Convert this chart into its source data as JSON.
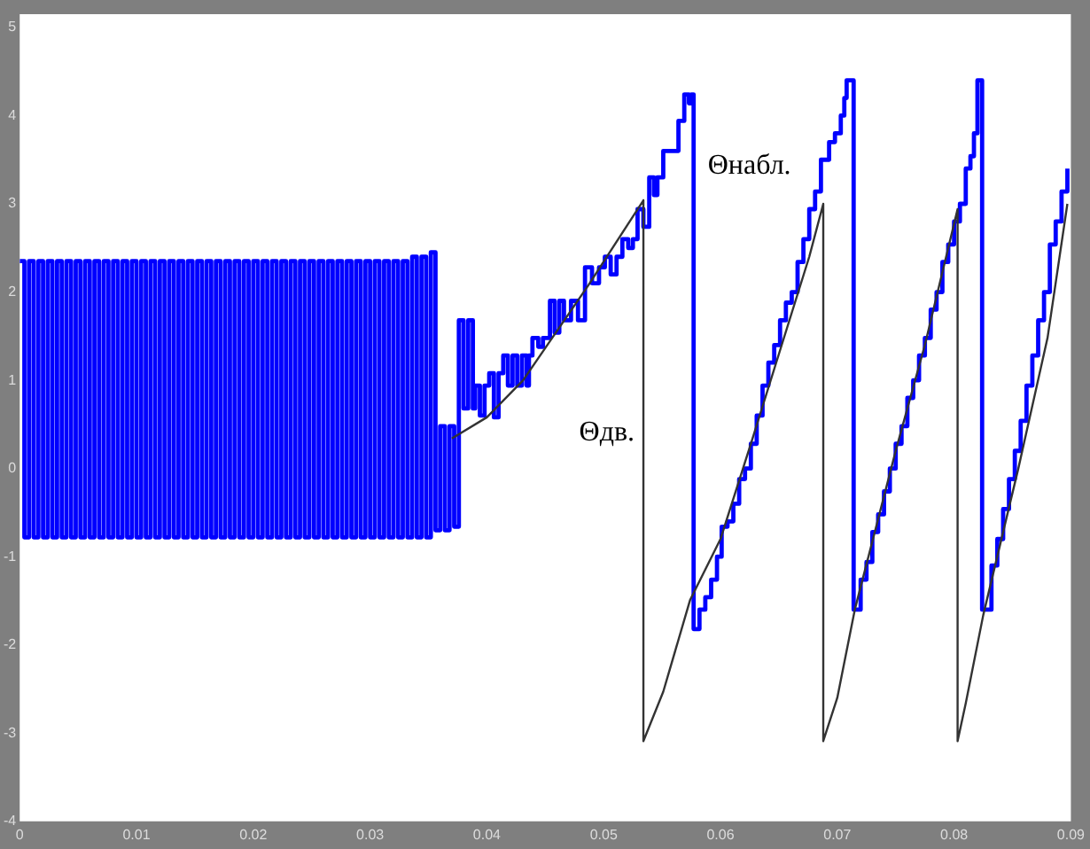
{
  "chart_data": {
    "type": "line",
    "xlim": [
      0,
      0.09
    ],
    "xticks": [
      0,
      0.01,
      0.02,
      0.03,
      0.04,
      0.05,
      0.06,
      0.07,
      0.08,
      0.09
    ],
    "ylim": [
      -4,
      5.15
    ],
    "yticks": [
      -4,
      -3,
      -2,
      -1,
      0,
      1,
      2,
      3,
      4,
      5
    ],
    "series": [
      {
        "name": "Θнабл.",
        "color": "#0000ff",
        "type": "step",
        "x": [
          0,
          0.0004,
          0.0008,
          0.0012,
          0.0016,
          0.002,
          0.0024,
          0.0028,
          0.0032,
          0.0036,
          0.004,
          0.0044,
          0.0048,
          0.0052,
          0.0056,
          0.006,
          0.0064,
          0.0068,
          0.0072,
          0.0076,
          0.008,
          0.0084,
          0.0088,
          0.0092,
          0.0096,
          0.01,
          0.0104,
          0.0108,
          0.0112,
          0.0116,
          0.012,
          0.0124,
          0.0128,
          0.0132,
          0.0136,
          0.014,
          0.0144,
          0.0148,
          0.0152,
          0.0156,
          0.016,
          0.0164,
          0.0168,
          0.0172,
          0.0176,
          0.018,
          0.0184,
          0.0188,
          0.0192,
          0.0196,
          0.02,
          0.0204,
          0.0208,
          0.0212,
          0.0216,
          0.022,
          0.0224,
          0.0228,
          0.0232,
          0.0236,
          0.024,
          0.0244,
          0.0248,
          0.0252,
          0.0256,
          0.026,
          0.0264,
          0.0268,
          0.0272,
          0.0276,
          0.028,
          0.0284,
          0.0288,
          0.0292,
          0.0296,
          0.03,
          0.0304,
          0.0308,
          0.0312,
          0.0316,
          0.032,
          0.0324,
          0.0328,
          0.0332,
          0.0336,
          0.034,
          0.0344,
          0.0348,
          0.0352,
          0.0356,
          0.036,
          0.0364,
          0.0368,
          0.0372,
          0.0376,
          0.038,
          0.0384,
          0.0388,
          0.039,
          0.0394,
          0.0398,
          0.0402,
          0.0406,
          0.041,
          0.0414,
          0.0418,
          0.0422,
          0.0426,
          0.043,
          0.0434,
          0.0436,
          0.0439,
          0.0444,
          0.0448,
          0.0454,
          0.0458,
          0.0462,
          0.0466,
          0.0472,
          0.0478,
          0.0484,
          0.049,
          0.0496,
          0.0501,
          0.0506,
          0.0511,
          0.0516,
          0.0521,
          0.0525,
          0.0529,
          0.0534,
          0.0539,
          0.0543,
          0.0546,
          0.0551,
          0.0564,
          0.0569,
          0.0573,
          0.0575,
          0.0577,
          0.0582,
          0.0587,
          0.0592,
          0.0597,
          0.0601,
          0.0606,
          0.0611,
          0.0616,
          0.0621,
          0.0626,
          0.0631,
          0.0636,
          0.0641,
          0.0646,
          0.0651,
          0.0656,
          0.0661,
          0.0666,
          0.0671,
          0.0676,
          0.0681,
          0.0686,
          0.0693,
          0.0698,
          0.0703,
          0.0706,
          0.0708,
          0.0714,
          0.072,
          0.0725,
          0.073,
          0.0735,
          0.074,
          0.0745,
          0.075,
          0.0755,
          0.076,
          0.0765,
          0.077,
          0.0775,
          0.078,
          0.0785,
          0.079,
          0.0795,
          0.08,
          0.0805,
          0.081,
          0.0814,
          0.0817,
          0.082,
          0.0824,
          0.0832,
          0.0837,
          0.0842,
          0.0847,
          0.0852,
          0.0857,
          0.0862,
          0.0867,
          0.0872,
          0.0877,
          0.0882,
          0.0887,
          0.0892,
          0.0897
        ],
        "values": [
          2.35,
          -0.78,
          2.35,
          -0.78,
          2.35,
          -0.78,
          2.35,
          -0.78,
          2.35,
          -0.78,
          2.35,
          -0.78,
          2.35,
          -0.78,
          2.35,
          -0.78,
          2.35,
          -0.78,
          2.35,
          -0.78,
          2.35,
          -0.78,
          2.35,
          -0.78,
          2.35,
          -0.78,
          2.35,
          -0.78,
          2.35,
          -0.78,
          2.35,
          -0.78,
          2.35,
          -0.78,
          2.35,
          -0.78,
          2.35,
          -0.78,
          2.35,
          -0.78,
          2.35,
          -0.78,
          2.35,
          -0.78,
          2.35,
          -0.78,
          2.35,
          -0.78,
          2.35,
          -0.78,
          2.35,
          -0.78,
          2.35,
          -0.78,
          2.35,
          -0.78,
          2.35,
          -0.78,
          2.35,
          -0.78,
          2.35,
          -0.78,
          2.35,
          -0.78,
          2.35,
          -0.78,
          2.35,
          -0.78,
          2.35,
          -0.78,
          2.35,
          -0.78,
          2.35,
          -0.78,
          2.35,
          -0.78,
          2.35,
          -0.78,
          2.35,
          -0.78,
          2.35,
          -0.78,
          2.35,
          -0.78,
          2.4,
          -0.78,
          2.4,
          -0.78,
          2.45,
          -0.7,
          0.48,
          -0.7,
          0.48,
          -0.66,
          1.68,
          0.68,
          1.68,
          0.68,
          0.94,
          0.6,
          0.94,
          1.08,
          0.58,
          1.08,
          1.28,
          0.94,
          1.28,
          0.94,
          1.28,
          0.94,
          1.28,
          1.48,
          1.38,
          1.48,
          1.9,
          1.54,
          1.9,
          1.68,
          1.9,
          1.68,
          2.28,
          2.1,
          2.28,
          2.4,
          2.2,
          2.4,
          2.6,
          2.5,
          2.6,
          2.94,
          2.74,
          3.3,
          3.1,
          3.3,
          3.6,
          3.94,
          4.24,
          4.14,
          4.24,
          -1.82,
          -1.6,
          -1.46,
          -1.26,
          -1.0,
          -0.66,
          -0.6,
          -0.4,
          -0.12,
          0,
          0.28,
          0.6,
          0.94,
          1.2,
          1.4,
          1.68,
          1.88,
          2.0,
          2.34,
          2.6,
          2.94,
          3.14,
          3.5,
          3.7,
          3.8,
          4.0,
          4.2,
          4.4,
          -1.6,
          -1.26,
          -1.06,
          -0.72,
          -0.52,
          -0.26,
          0,
          0.28,
          0.48,
          0.8,
          1.0,
          1.28,
          1.48,
          1.8,
          2.0,
          2.34,
          2.54,
          2.8,
          3.0,
          3.4,
          3.54,
          3.8,
          4.4,
          -1.6,
          -1.1,
          -0.8,
          -0.46,
          -0.12,
          0.2,
          0.54,
          0.94,
          1.28,
          1.68,
          2.0,
          2.54,
          2.8,
          3.14,
          3.4
        ]
      },
      {
        "name": "Θдв.",
        "color": "#333333",
        "x": [
          0.037,
          0.04,
          0.0431,
          0.0487,
          0.0534,
          0.0534,
          0.0551,
          0.0574,
          0.06,
          0.0626,
          0.0651,
          0.0676,
          0.0688,
          0.0688,
          0.07,
          0.0715,
          0.075,
          0.0775,
          0.0803,
          0.0803,
          0.081,
          0.0825,
          0.0855,
          0.088,
          0.0897
        ],
        "values": [
          0.34,
          0.58,
          1.0,
          2.08,
          3.04,
          -3.09,
          -2.53,
          -1.49,
          -0.8,
          0.28,
          1.34,
          2.4,
          3.0,
          -3.09,
          -2.6,
          -1.6,
          0.2,
          1.4,
          2.94,
          -3.09,
          -2.66,
          -1.66,
          0,
          1.48,
          3.0
        ]
      }
    ]
  }
}
